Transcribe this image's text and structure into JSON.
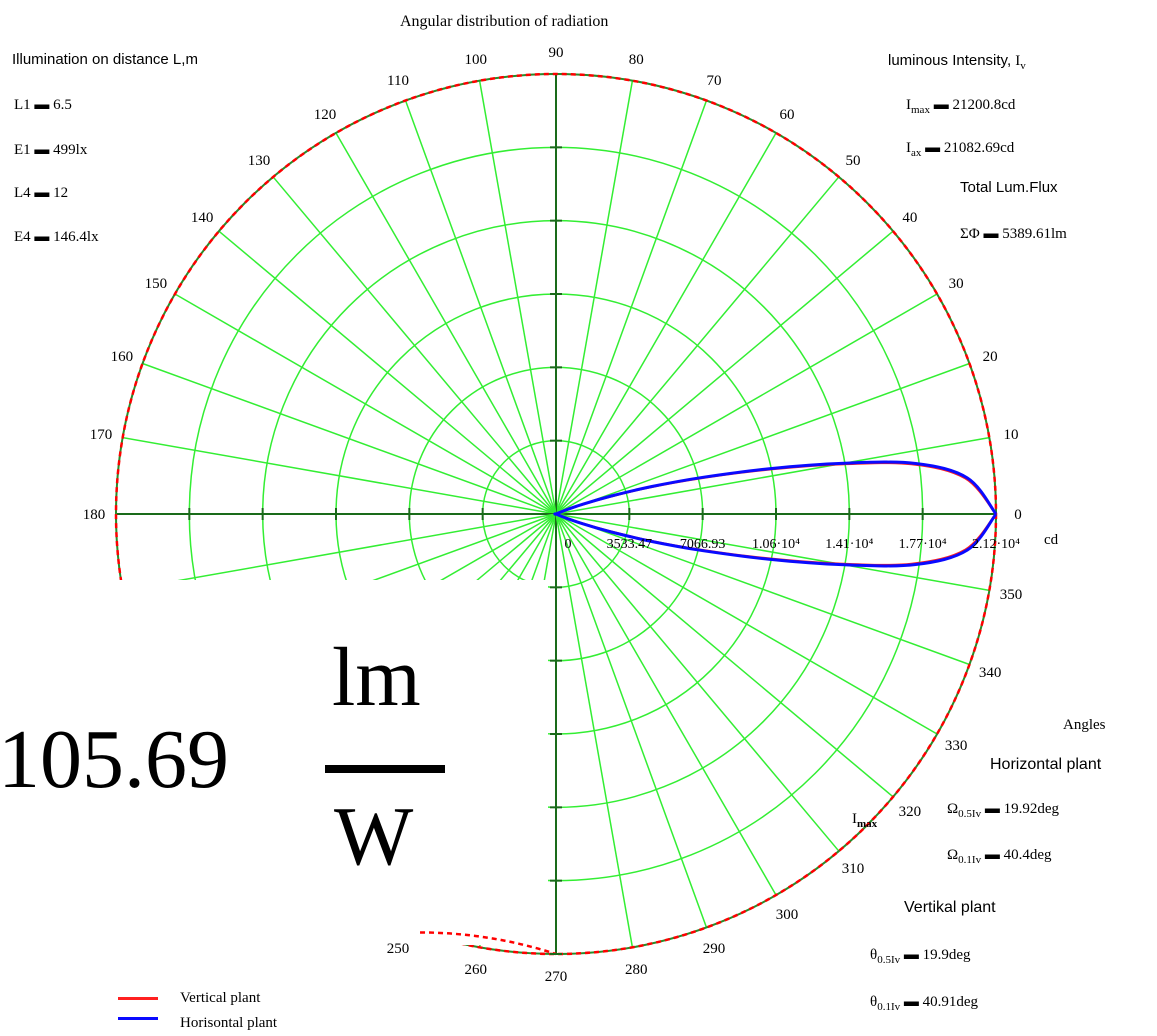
{
  "chart_data": {
    "type": "polar",
    "title": "Angular distribution of radiation",
    "angle_ticks": [
      "0",
      "10",
      "20",
      "30",
      "40",
      "50",
      "60",
      "70",
      "80",
      "90",
      "100",
      "110",
      "120",
      "130",
      "140",
      "150",
      "160",
      "170",
      "180",
      "250",
      "260",
      "270",
      "280",
      "290",
      "300",
      "310",
      "320",
      "330",
      "340",
      "350"
    ],
    "radial_tick_labels": [
      "0",
      "3533.47",
      "7066.93",
      "1.06·10⁴",
      "1.41·10⁴",
      "1.77·10⁴",
      "2.12·10⁴"
    ],
    "radial_unit": "cd",
    "rmax": 21200.8,
    "series": [
      {
        "name": "Vertical plant",
        "color": "#ff2020",
        "points": [
          [
            0,
            21200.8
          ],
          [
            5,
            19800
          ],
          [
            8,
            17300
          ],
          [
            10,
            13800
          ],
          [
            12,
            10200
          ],
          [
            14,
            7100
          ],
          [
            16,
            4600
          ],
          [
            18,
            2600
          ],
          [
            20,
            1300
          ],
          [
            22,
            450
          ],
          [
            25,
            0
          ],
          [
            335,
            0
          ],
          [
            338,
            450
          ],
          [
            340,
            1300
          ],
          [
            342,
            2600
          ],
          [
            344,
            4600
          ],
          [
            346,
            7100
          ],
          [
            348,
            10200
          ],
          [
            350,
            13800
          ],
          [
            352,
            17300
          ],
          [
            355,
            19800
          ],
          [
            360,
            21200.8
          ]
        ]
      },
      {
        "name": "Horisontal plant",
        "color": "#0a0aff",
        "points": [
          [
            0,
            21200.8
          ],
          [
            5,
            19900
          ],
          [
            8,
            17500
          ],
          [
            10,
            14100
          ],
          [
            12,
            10500
          ],
          [
            14,
            7300
          ],
          [
            16,
            4800
          ],
          [
            18,
            2800
          ],
          [
            20,
            1400
          ],
          [
            22,
            500
          ],
          [
            25,
            0
          ],
          [
            335,
            0
          ],
          [
            338,
            500
          ],
          [
            340,
            1400
          ],
          [
            342,
            2800
          ],
          [
            344,
            4800
          ],
          [
            346,
            7300
          ],
          [
            348,
            10500
          ],
          [
            350,
            14100
          ],
          [
            352,
            17500
          ],
          [
            355,
            19900
          ],
          [
            360,
            21200.8
          ]
        ]
      }
    ],
    "envelope_color": "#ff0000",
    "grid_color": "#33ee33"
  },
  "left_panel": {
    "heading": "Illumination on distance L,m",
    "l1": "L1 ▬ 6.5",
    "e1": "E1 ▬ 499lx",
    "l4": "L4 ▬ 12",
    "e4": "E4 ▬ 146.4lx"
  },
  "right_panel": {
    "heading": "luminous Intensity,",
    "heading_symbol": "I",
    "heading_sub": "v",
    "imax_label": "I",
    "imax_sub": "max",
    "imax_value": "▬ 21200.8cd",
    "iax_label": "I",
    "iax_sub": "ax",
    "iax_value": "▬ 21082.69cd",
    "flux_heading": "Total Lum.Flux",
    "flux_value": "ΣΦ ▬ 5389.61lm"
  },
  "angles_panel": {
    "heading": "Angles",
    "horizontal_heading": "Horizontal plant",
    "omega05_sym": "Ω",
    "omega05_sub": "0.5Iv",
    "omega05_value": "▬ 19.92deg",
    "omega01_sym": "Ω",
    "omega01_sub": "0.1Iv",
    "omega01_value": "▬ 40.4deg",
    "vertical_heading": "Vertikal plant",
    "theta05_sym": "θ",
    "theta05_sub": "0.5Iv",
    "theta05_value": "▬ 19.9deg",
    "theta01_sym": "θ",
    "theta01_sub": "0.1Iv",
    "theta01_value": "▬ 40.91deg"
  },
  "imax_marker": {
    "symbol": "I",
    "sub": "max"
  },
  "efficacy": {
    "value": "105.69",
    "numerator": "lm",
    "denominator": "W"
  },
  "legend": [
    {
      "label": "Vertical plant",
      "color": "#ff2020"
    },
    {
      "label": "Horisontal plant",
      "color": "#0a0aff"
    }
  ]
}
